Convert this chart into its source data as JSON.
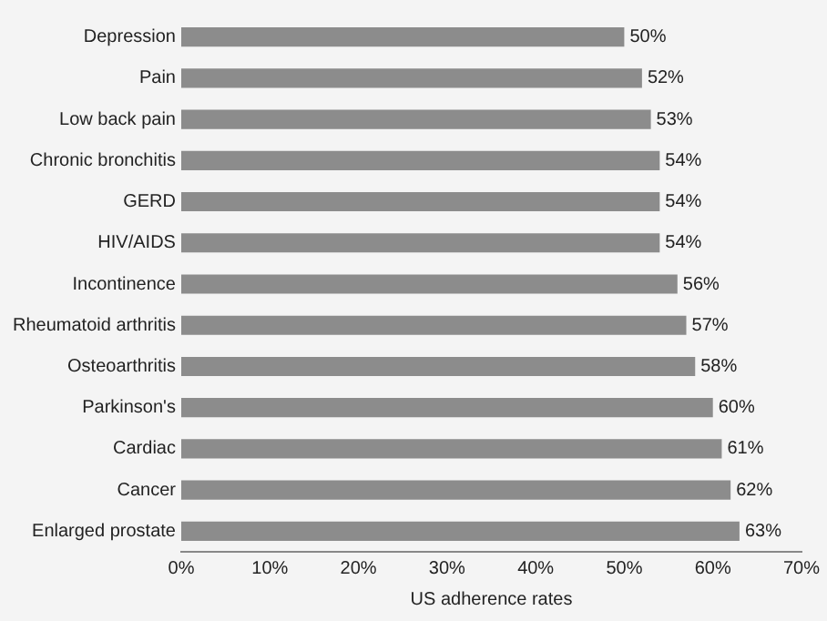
{
  "chart_data": {
    "type": "bar",
    "orientation": "horizontal",
    "xlabel": "US adherence rates",
    "categories": [
      "Depression",
      "Pain",
      "Low back pain",
      "Chronic bronchitis",
      "GERD",
      "HIV/AIDS",
      "Incontinence",
      "Rheumatoid arthritis",
      "Osteoarthritis",
      "Parkinson's",
      "Cardiac",
      "Cancer",
      "Enlarged prostate"
    ],
    "values": [
      50,
      52,
      53,
      54,
      54,
      54,
      56,
      57,
      58,
      60,
      61,
      62,
      63
    ],
    "value_labels": [
      "50%",
      "52%",
      "53%",
      "54%",
      "54%",
      "54%",
      "56%",
      "57%",
      "58%",
      "60%",
      "61%",
      "62%",
      "63%"
    ],
    "color": "#8c8c8c",
    "xlim": [
      0,
      70
    ],
    "xticks": [
      {
        "value": 0,
        "label": "0%"
      },
      {
        "value": 10,
        "label": "10%"
      },
      {
        "value": 20,
        "label": "20%"
      },
      {
        "value": 30,
        "label": "30%"
      },
      {
        "value": 40,
        "label": "40%"
      },
      {
        "value": 50,
        "label": "50%"
      },
      {
        "value": 60,
        "label": "60%"
      },
      {
        "value": 70,
        "label": "70%"
      }
    ],
    "grid": false,
    "legend": false
  }
}
